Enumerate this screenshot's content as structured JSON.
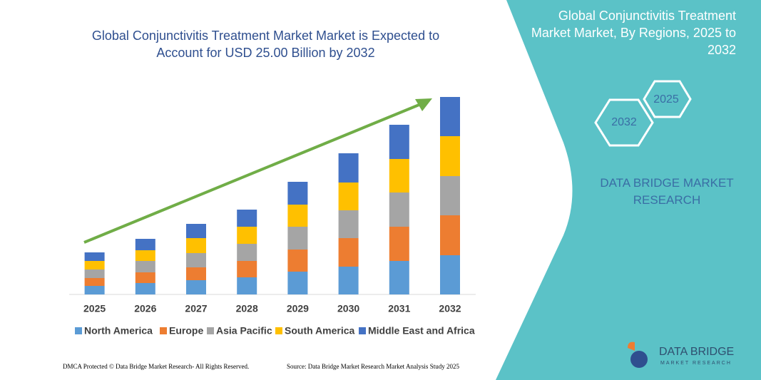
{
  "title": "Global Conjunctivitis Treatment Market Market is Expected to Account for USD 25.00 Billion by 2032",
  "side_title": "Global Conjunctivitis Treatment Market Market, By Regions, 2025 to 2032",
  "hexagons": [
    "2025",
    "2032"
  ],
  "brand_text": "DATA BRIDGE MARKET RESEARCH",
  "logo": {
    "name": "DATA BRIDGE",
    "tagline": "MARKET RESEARCH"
  },
  "footer": {
    "left": "DMCA Protected © Data Bridge Market Research- All Rights Reserved.",
    "right": "Source: Data Bridge Market Research Market Analysis Study 2025"
  },
  "chart_data": {
    "type": "stacked_bar",
    "categories": [
      "2025",
      "2026",
      "2027",
      "2028",
      "2029",
      "2030",
      "2031",
      "2032"
    ],
    "ylim": [
      0,
      280
    ],
    "series": [
      {
        "name": "North America",
        "color": "#5b9bd5",
        "values": [
          12,
          16,
          20,
          24,
          32,
          39,
          47,
          55
        ]
      },
      {
        "name": "Europe",
        "color": "#ed7d31",
        "values": [
          11,
          15,
          18,
          23,
          31,
          40,
          48,
          56
        ]
      },
      {
        "name": "Asia Pacific",
        "color": "#a5a5a5",
        "values": [
          12,
          16,
          20,
          24,
          32,
          39,
          48,
          55
        ]
      },
      {
        "name": "South America",
        "color": "#ffc000",
        "values": [
          12,
          15,
          21,
          24,
          31,
          39,
          47,
          56
        ]
      },
      {
        "name": "Middle East and Africa",
        "color": "#4472c4",
        "values": [
          12,
          16,
          20,
          24,
          32,
          41,
          48,
          55
        ]
      }
    ]
  }
}
